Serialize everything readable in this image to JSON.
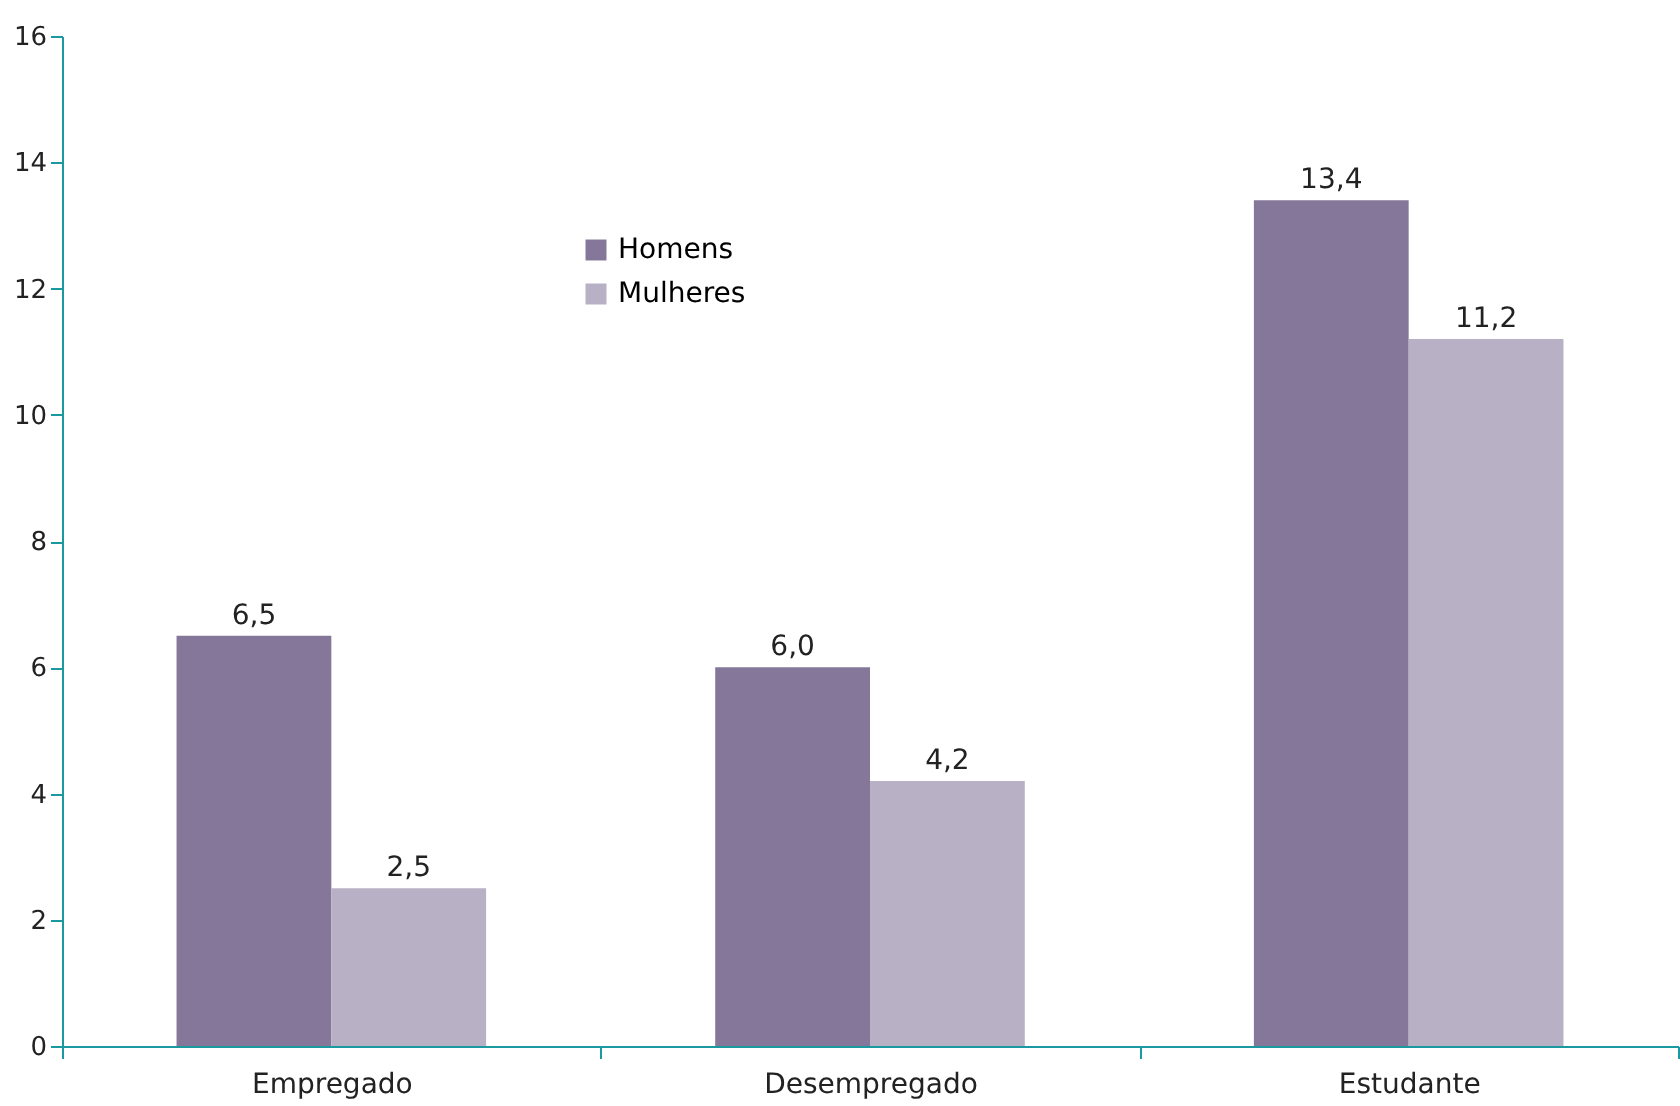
{
  "chart_data": {
    "type": "bar",
    "categories": [
      "Empregado",
      "Desempregado",
      "Estudante"
    ],
    "series": [
      {
        "name": "Homens",
        "color": "#857799",
        "values": [
          6.5,
          6.0,
          13.4
        ],
        "value_labels": [
          "6,5",
          "6,0",
          "13,4"
        ]
      },
      {
        "name": "Mulheres",
        "color": "#b8b0c4",
        "values": [
          2.5,
          4.2,
          11.2
        ],
        "value_labels": [
          "2,5",
          "4,2",
          "11,2"
        ]
      }
    ],
    "ylim": [
      0,
      16
    ],
    "yticks": [
      0,
      2,
      4,
      6,
      8,
      10,
      12,
      14,
      16
    ],
    "grid": false,
    "legend": "top"
  }
}
